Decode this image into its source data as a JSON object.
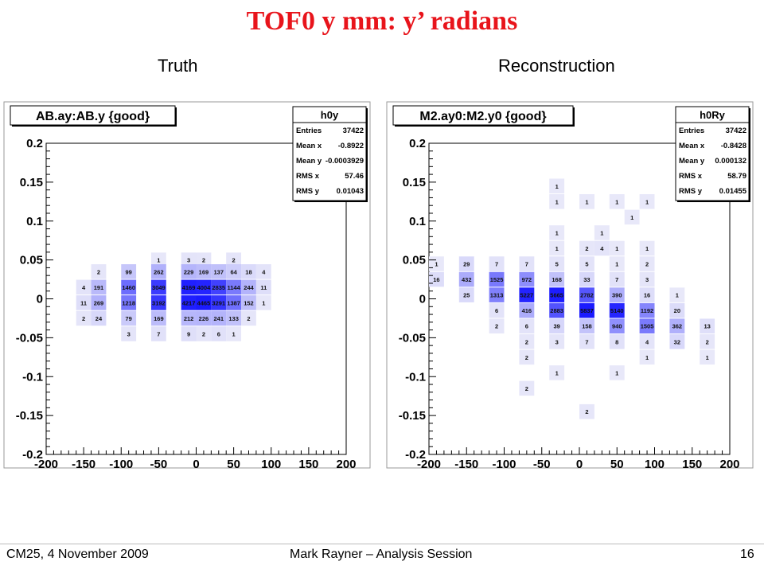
{
  "slide": {
    "title": "TOF0 y mm: y’ radians",
    "left_subtitle": "Truth",
    "right_subtitle": "Reconstruction"
  },
  "footer": {
    "left": "CM25, 4 November 2009",
    "center": "Mark Rayner – Analysis Session",
    "page": "16"
  },
  "colors": {
    "title": "#e8141b",
    "bin_max": "#1a1aff",
    "bin_min": "#ececf9"
  },
  "chart_data": [
    {
      "type": "heatmap",
      "title": "AB.ay:AB.y {good}",
      "xlim": [
        -200,
        200
      ],
      "ylim": [
        -0.2,
        0.2
      ],
      "x_ticks": [
        "-200",
        "-150",
        "-100",
        "-50",
        "0",
        "50",
        "100",
        "150",
        "200"
      ],
      "y_ticks": [
        "0.2",
        "0.15",
        "0.1",
        "0.05",
        "0",
        "-0.05",
        "-0.1",
        "-0.15",
        "-0.2"
      ],
      "bin_width_x": 20,
      "bin_width_y": 0.01,
      "stats": {
        "name": "h0y",
        "rows": [
          {
            "label": "Entries",
            "value": "37422"
          },
          {
            "label": "Mean x",
            "value": "-0.8922"
          },
          {
            "label": "Mean y",
            "value": "-0.0003929"
          },
          {
            "label": "RMS x",
            "value": "57.46"
          },
          {
            "label": "RMS y",
            "value": "0.01043"
          }
        ]
      },
      "cells": [
        {
          "x": -50,
          "y": 0.05,
          "v": "1"
        },
        {
          "x": -10,
          "y": 0.05,
          "v": "3"
        },
        {
          "x": 10,
          "y": 0.05,
          "v": "2"
        },
        {
          "x": 50,
          "y": 0.05,
          "v": "2"
        },
        {
          "x": -130,
          "y": 0.035,
          "v": "2"
        },
        {
          "x": -90,
          "y": 0.035,
          "v": "99"
        },
        {
          "x": -50,
          "y": 0.035,
          "v": "262"
        },
        {
          "x": -10,
          "y": 0.035,
          "v": "229"
        },
        {
          "x": 10,
          "y": 0.035,
          "v": "169"
        },
        {
          "x": 30,
          "y": 0.035,
          "v": "137"
        },
        {
          "x": 50,
          "y": 0.035,
          "v": "64"
        },
        {
          "x": 70,
          "y": 0.035,
          "v": "18"
        },
        {
          "x": 90,
          "y": 0.035,
          "v": "4"
        },
        {
          "x": -150,
          "y": 0.015,
          "v": "4"
        },
        {
          "x": -130,
          "y": 0.015,
          "v": "191"
        },
        {
          "x": -90,
          "y": 0.015,
          "v": "1460"
        },
        {
          "x": -50,
          "y": 0.015,
          "v": "3049"
        },
        {
          "x": -10,
          "y": 0.015,
          "v": "4169"
        },
        {
          "x": 10,
          "y": 0.015,
          "v": "4004"
        },
        {
          "x": 30,
          "y": 0.015,
          "v": "2835"
        },
        {
          "x": 50,
          "y": 0.015,
          "v": "1144"
        },
        {
          "x": 70,
          "y": 0.015,
          "v": "244"
        },
        {
          "x": 90,
          "y": 0.015,
          "v": "11"
        },
        {
          "x": -150,
          "y": -0.005,
          "v": "11"
        },
        {
          "x": -130,
          "y": -0.005,
          "v": "269"
        },
        {
          "x": -90,
          "y": -0.005,
          "v": "1218"
        },
        {
          "x": -50,
          "y": -0.005,
          "v": "3192"
        },
        {
          "x": -10,
          "y": -0.005,
          "v": "4217"
        },
        {
          "x": 10,
          "y": -0.005,
          "v": "4465"
        },
        {
          "x": 30,
          "y": -0.005,
          "v": "3291"
        },
        {
          "x": 50,
          "y": -0.005,
          "v": "1387"
        },
        {
          "x": 70,
          "y": -0.005,
          "v": "152"
        },
        {
          "x": 90,
          "y": -0.005,
          "v": "1"
        },
        {
          "x": -150,
          "y": -0.025,
          "v": "2"
        },
        {
          "x": -130,
          "y": -0.025,
          "v": "24"
        },
        {
          "x": -90,
          "y": -0.025,
          "v": "79"
        },
        {
          "x": -50,
          "y": -0.025,
          "v": "169"
        },
        {
          "x": -10,
          "y": -0.025,
          "v": "212"
        },
        {
          "x": 10,
          "y": -0.025,
          "v": "226"
        },
        {
          "x": 30,
          "y": -0.025,
          "v": "241"
        },
        {
          "x": 50,
          "y": -0.025,
          "v": "133"
        },
        {
          "x": 70,
          "y": -0.025,
          "v": "2"
        },
        {
          "x": -90,
          "y": -0.045,
          "v": "3"
        },
        {
          "x": -50,
          "y": -0.045,
          "v": "7"
        },
        {
          "x": -10,
          "y": -0.045,
          "v": "9"
        },
        {
          "x": 10,
          "y": -0.045,
          "v": "2"
        },
        {
          "x": 30,
          "y": -0.045,
          "v": "6"
        },
        {
          "x": 50,
          "y": -0.045,
          "v": "1"
        }
      ]
    },
    {
      "type": "heatmap",
      "title": "M2.ay0:M2.y0 {good}",
      "xlim": [
        -200,
        200
      ],
      "ylim": [
        -0.2,
        0.2
      ],
      "x_ticks": [
        "-200",
        "-150",
        "-100",
        "-50",
        "0",
        "50",
        "100",
        "150",
        "200"
      ],
      "y_ticks": [
        "0.2",
        "0.15",
        "0.1",
        "0.05",
        "0",
        "-0.05",
        "-0.1",
        "-0.15",
        "-0.2"
      ],
      "bin_width_x": 20,
      "bin_width_y": 0.01,
      "stats": {
        "name": "h0Ry",
        "rows": [
          {
            "label": "Entries",
            "value": "37422"
          },
          {
            "label": "Mean x",
            "value": "-0.8428"
          },
          {
            "label": "Mean y",
            "value": "0.000132"
          },
          {
            "label": "RMS x",
            "value": "58.79"
          },
          {
            "label": "RMS y",
            "value": "0.01455"
          }
        ]
      },
      "cells": [
        {
          "x": -30,
          "y": 0.145,
          "v": "1"
        },
        {
          "x": -30,
          "y": 0.125,
          "v": "1"
        },
        {
          "x": 10,
          "y": 0.125,
          "v": "1"
        },
        {
          "x": 10,
          "y": 0.125,
          "v": "1"
        },
        {
          "x": 50,
          "y": 0.125,
          "v": "1"
        },
        {
          "x": 90,
          "y": 0.125,
          "v": "1"
        },
        {
          "x": 70,
          "y": 0.105,
          "v": "1"
        },
        {
          "x": -30,
          "y": 0.085,
          "v": "1"
        },
        {
          "x": 30,
          "y": 0.085,
          "v": "1"
        },
        {
          "x": -30,
          "y": 0.065,
          "v": "1"
        },
        {
          "x": 10,
          "y": 0.065,
          "v": "2"
        },
        {
          "x": 30,
          "y": 0.065,
          "v": "4"
        },
        {
          "x": 50,
          "y": 0.065,
          "v": "1"
        },
        {
          "x": 90,
          "y": 0.065,
          "v": "1"
        },
        {
          "x": -190,
          "y": 0.045,
          "v": "1"
        },
        {
          "x": -150,
          "y": 0.045,
          "v": "29"
        },
        {
          "x": -110,
          "y": 0.045,
          "v": "7"
        },
        {
          "x": -70,
          "y": 0.045,
          "v": "7"
        },
        {
          "x": -30,
          "y": 0.045,
          "v": "5"
        },
        {
          "x": 10,
          "y": 0.045,
          "v": "5"
        },
        {
          "x": 50,
          "y": 0.045,
          "v": "1"
        },
        {
          "x": 90,
          "y": 0.045,
          "v": "2"
        },
        {
          "x": -190,
          "y": 0.025,
          "v": "16"
        },
        {
          "x": -150,
          "y": 0.025,
          "v": "432"
        },
        {
          "x": -110,
          "y": 0.025,
          "v": "1525"
        },
        {
          "x": -70,
          "y": 0.025,
          "v": "972"
        },
        {
          "x": -30,
          "y": 0.025,
          "v": "168"
        },
        {
          "x": 10,
          "y": 0.025,
          "v": "33"
        },
        {
          "x": 50,
          "y": 0.025,
          "v": "7"
        },
        {
          "x": 90,
          "y": 0.025,
          "v": "3"
        },
        {
          "x": -150,
          "y": 0.005,
          "v": "25"
        },
        {
          "x": -110,
          "y": 0.005,
          "v": "1313"
        },
        {
          "x": -70,
          "y": 0.005,
          "v": "5227"
        },
        {
          "x": -30,
          "y": 0.005,
          "v": "5665"
        },
        {
          "x": 10,
          "y": 0.005,
          "v": "2782"
        },
        {
          "x": 50,
          "y": 0.005,
          "v": "390"
        },
        {
          "x": 90,
          "y": 0.005,
          "v": "16"
        },
        {
          "x": 130,
          "y": 0.005,
          "v": "1"
        },
        {
          "x": -110,
          "y": -0.015,
          "v": "6"
        },
        {
          "x": -70,
          "y": -0.015,
          "v": "416"
        },
        {
          "x": -30,
          "y": -0.015,
          "v": "2883"
        },
        {
          "x": 10,
          "y": -0.015,
          "v": "5837"
        },
        {
          "x": 50,
          "y": -0.015,
          "v": "5140"
        },
        {
          "x": 90,
          "y": -0.015,
          "v": "1192"
        },
        {
          "x": 130,
          "y": -0.015,
          "v": "20"
        },
        {
          "x": -110,
          "y": -0.035,
          "v": "2"
        },
        {
          "x": -70,
          "y": -0.035,
          "v": "6"
        },
        {
          "x": -30,
          "y": -0.035,
          "v": "39"
        },
        {
          "x": 10,
          "y": -0.035,
          "v": "158"
        },
        {
          "x": 50,
          "y": -0.035,
          "v": "940"
        },
        {
          "x": 90,
          "y": -0.035,
          "v": "1505"
        },
        {
          "x": 130,
          "y": -0.035,
          "v": "362"
        },
        {
          "x": 170,
          "y": -0.035,
          "v": "13"
        },
        {
          "x": -70,
          "y": -0.055,
          "v": "2"
        },
        {
          "x": -30,
          "y": -0.055,
          "v": "3"
        },
        {
          "x": 10,
          "y": -0.055,
          "v": "7"
        },
        {
          "x": 50,
          "y": -0.055,
          "v": "8"
        },
        {
          "x": 90,
          "y": -0.055,
          "v": "4"
        },
        {
          "x": 130,
          "y": -0.055,
          "v": "32"
        },
        {
          "x": 170,
          "y": -0.055,
          "v": "2"
        },
        {
          "x": -70,
          "y": -0.075,
          "v": "2"
        },
        {
          "x": 90,
          "y": -0.075,
          "v": "1"
        },
        {
          "x": 170,
          "y": -0.075,
          "v": "1"
        },
        {
          "x": -30,
          "y": -0.095,
          "v": "1"
        },
        {
          "x": 50,
          "y": -0.095,
          "v": "1"
        },
        {
          "x": -70,
          "y": -0.115,
          "v": "2"
        },
        {
          "x": 10,
          "y": -0.145,
          "v": "2"
        }
      ]
    }
  ]
}
